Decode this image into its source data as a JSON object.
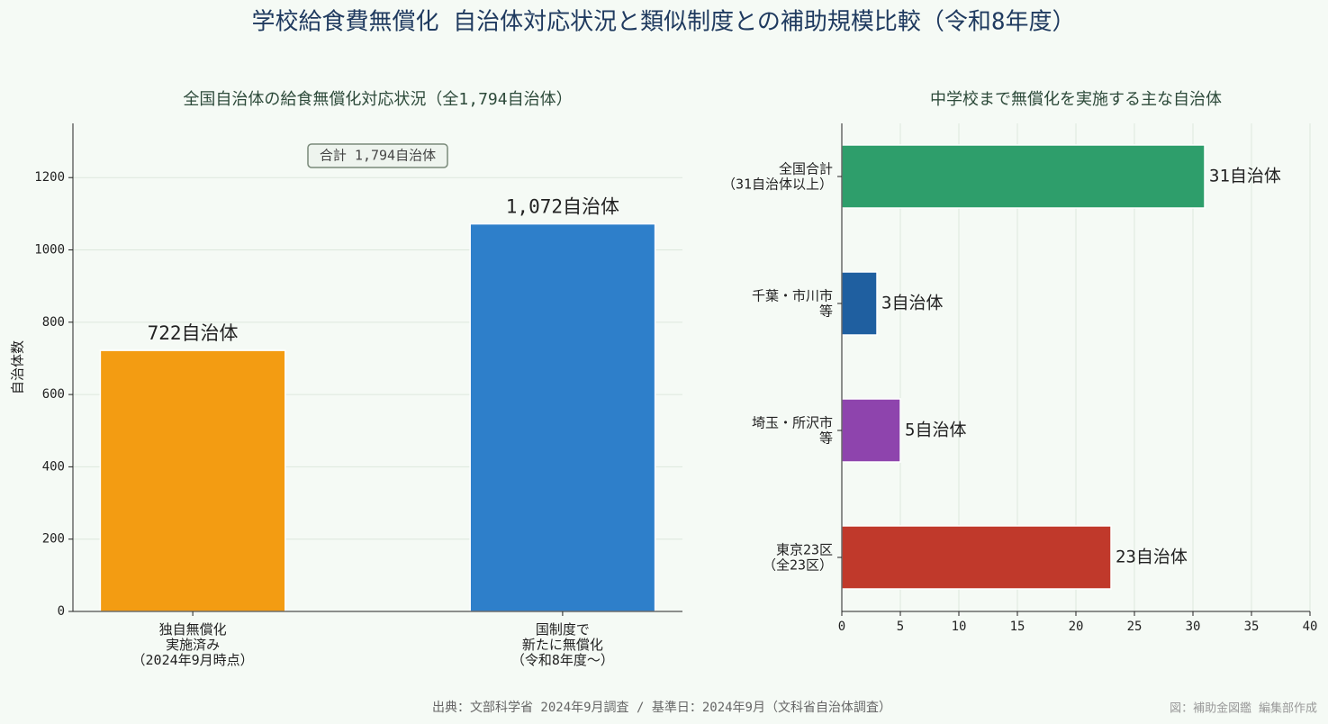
{
  "title": "学校給食費無償化 自治体対応状況と類似制度との補助規模比較（令和8年度）",
  "source": "出典：文部科学省 2024年9月調査 / 基準日：2024年9月（文科省自治体調査）",
  "credit": "図：補助金図鑑 編集部作成",
  "chart_data": [
    {
      "type": "bar",
      "title": "全国自治体の給食無償化対応状況（全1,794自治体）",
      "ylabel": "自治体数",
      "categories": [
        "独自無償化\n実施済み\n（2024年9月時点）",
        "国制度で\n新たに無償化\n（令和8年度～）"
      ],
      "values": [
        722,
        1072
      ],
      "value_labels": [
        "722自治体",
        "1,072自治体"
      ],
      "colors": [
        "#f39c12",
        "#2e7fca"
      ],
      "annotation": "合計 1,794自治体",
      "ylim": [
        0,
        1350
      ],
      "yticks": [
        0,
        200,
        400,
        600,
        800,
        1000,
        1200
      ],
      "grid": true
    },
    {
      "type": "barh",
      "title": "中学校まで無償化を実施する主な自治体",
      "categories": [
        "全国合計\n（31自治体以上）",
        "千葉・市川市\n等",
        "埼玉・所沢市\n等",
        "東京23区\n（全23区）"
      ],
      "values": [
        31,
        3,
        5,
        23
      ],
      "value_labels": [
        "31自治体",
        "3自治体",
        "5自治体",
        "23自治体"
      ],
      "colors": [
        "#2e9e6b",
        "#1f5fa0",
        "#8e44ad",
        "#c0392b"
      ],
      "xlim": [
        0,
        40
      ],
      "xticks": [
        0,
        5,
        10,
        15,
        20,
        25,
        30,
        35,
        40
      ],
      "grid": true
    }
  ]
}
